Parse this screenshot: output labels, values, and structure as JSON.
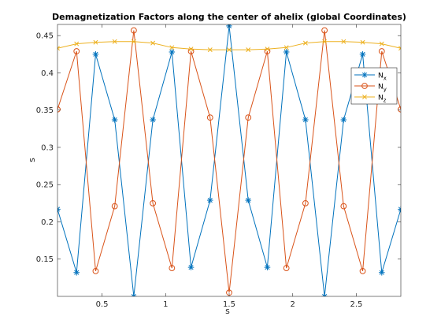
{
  "chart_data": {
    "type": "line",
    "title": "Demagnetization Factors along the center of ahelix (global Coordinates)",
    "xlabel": "s",
    "ylabel": "s",
    "xlim": [
      0.15,
      2.85
    ],
    "ylim": [
      0.1,
      0.465
    ],
    "x_ticks": [
      0.5,
      1,
      1.5,
      2,
      2.5
    ],
    "x_tick_labels": [
      "0.5",
      "1",
      "1.5",
      "2",
      "2.5"
    ],
    "y_ticks": [
      0.15,
      0.2,
      0.25,
      0.3,
      0.35,
      0.4,
      0.45
    ],
    "y_tick_labels": [
      "0.15",
      "0.2",
      "0.25",
      "0.3",
      "0.35",
      "0.4",
      "0.45"
    ],
    "grid": false,
    "legend_position": "upper right",
    "x": [
      0.15,
      0.3,
      0.45,
      0.6,
      0.75,
      0.9,
      1.05,
      1.2,
      1.35,
      1.5,
      1.65,
      1.8,
      1.95,
      2.1,
      2.25,
      2.4,
      2.55,
      2.7,
      2.85
    ],
    "series": [
      {
        "name": "N",
        "subscript": "x",
        "color": "#0072BD",
        "marker": "asterisk",
        "values": [
          0.217,
          0.132,
          0.425,
          0.337,
          0.1,
          0.337,
          0.428,
          0.139,
          0.229,
          0.463,
          0.229,
          0.139,
          0.428,
          0.337,
          0.1,
          0.337,
          0.425,
          0.132,
          0.217
        ]
      },
      {
        "name": "N",
        "subscript": "y",
        "color": "#D95319",
        "marker": "circle",
        "values": [
          0.351,
          0.429,
          0.134,
          0.221,
          0.457,
          0.225,
          0.138,
          0.429,
          0.34,
          0.105,
          0.34,
          0.429,
          0.138,
          0.225,
          0.457,
          0.221,
          0.134,
          0.429,
          0.351
        ]
      },
      {
        "name": "N",
        "subscript": "z",
        "color": "#EDB120",
        "marker": "x",
        "values": [
          0.433,
          0.439,
          0.441,
          0.442,
          0.442,
          0.44,
          0.434,
          0.432,
          0.431,
          0.431,
          0.431,
          0.432,
          0.434,
          0.44,
          0.442,
          0.442,
          0.441,
          0.439,
          0.433
        ]
      }
    ]
  }
}
